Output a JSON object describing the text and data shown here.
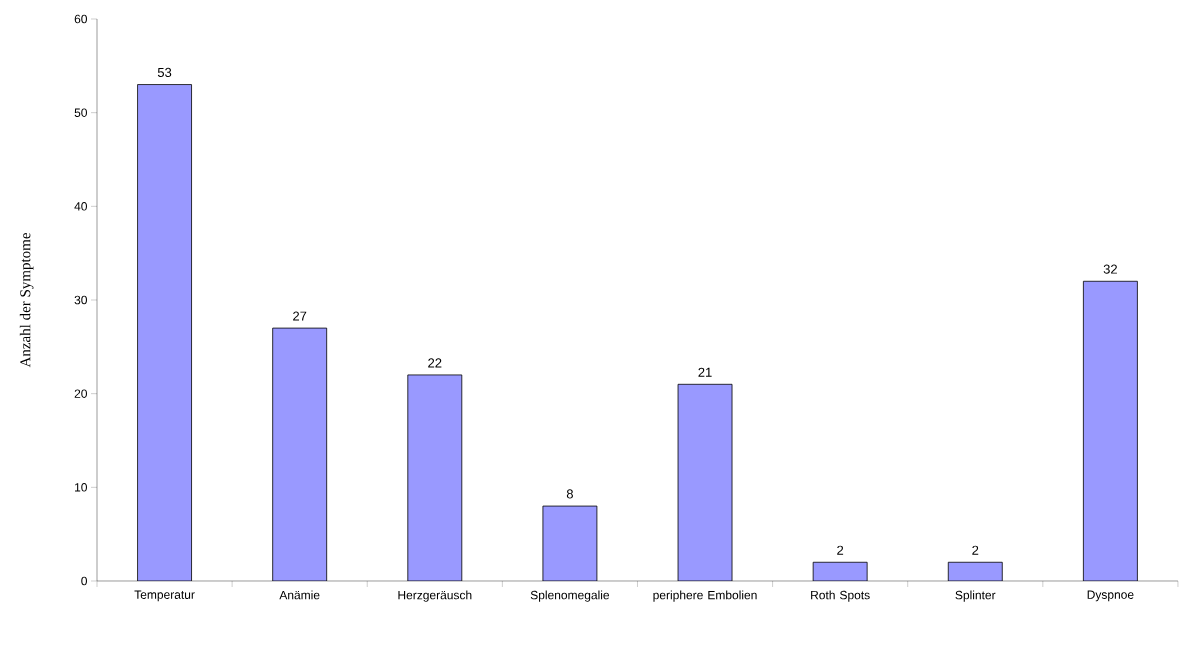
{
  "chart_data": {
    "type": "bar",
    "ylabel": "Anzahl der Symptome",
    "categories": [
      "Temperatur",
      "Anämie",
      "Herzgeräusch",
      "Splenomegalie",
      "periphere Embolien",
      "Roth Spots",
      "Splinter",
      "Dyspnoe"
    ],
    "values": [
      53,
      27,
      22,
      8,
      21,
      2,
      2,
      32
    ],
    "color": "#9999ff",
    "ylim": [
      0,
      60
    ],
    "yticks": [
      0,
      10,
      20,
      30,
      40,
      50,
      60
    ],
    "data_labels": true
  }
}
